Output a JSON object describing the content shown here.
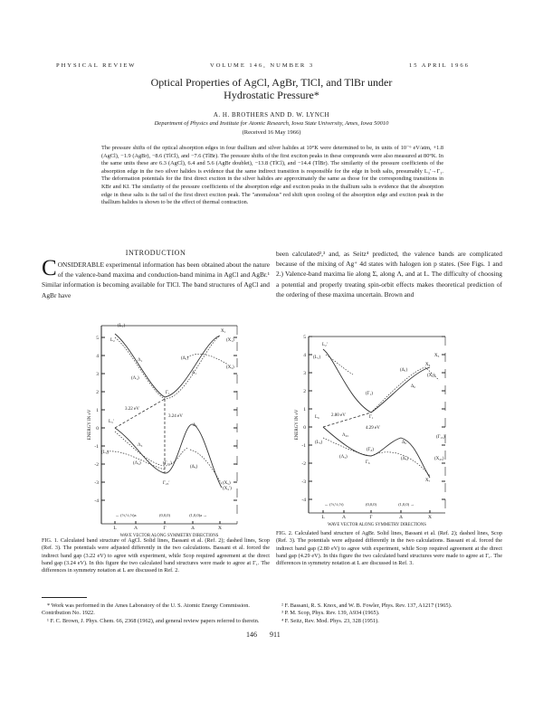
{
  "header": {
    "journal": "PHYSICAL REVIEW",
    "volume": "VOLUME 146, NUMBER 3",
    "date": "15 APRIL 1966"
  },
  "title": {
    "line1": "Optical Properties of AgCl, AgBr, TlCl, and TlBr under",
    "line2": "Hydrostatic Pressure*"
  },
  "authors": "A. H. BROTHERS AND D. W. LYNCH",
  "affiliation": "Department of Physics and Institute for Atomic Research, Iowa State University, Ames, Iowa 50010",
  "received": "(Received 16 May 1966)",
  "abstract": "The pressure shifts of the optical absorption edges in four thallium and silver halides at 10°K were determined to be, in units of 10⁻⁶ eV/atm, +1.8 (AgCl), −1.9 (AgBr), −8.6 (TlCl), and −7.6 (TlBr). The pressure shifts of the first exciton peaks in these compounds were also measured at 80°K. In the same units these are 6.3 (AgCl), 6.4 and 5.6 (AgBr doublet), −13.8 (TlCl), and −14.4 (TlBr). The similarity of the pressure coefficients of the absorption edge in the two silver halides is evidence that the same indirect transition is responsible for the edge in both salts, presumably L₃′→Γ₁. The deformation potentials for the first direct exciton in the silver halides are approximately the same as those for the corresponding transitions in KBr and KI. The similarity of the pressure coefficients of the absorption edge and exciton peaks in the thallium salts is evidence that the absorption edge in these salts is the tail of the first direct exciton peak. The \"anomalous\" red shift upon cooling of the absorption edge and exciton peak in the thallium halides is shown to be the effect of thermal contraction.",
  "introduction": {
    "heading": "INTRODUCTION",
    "dropcap": "C",
    "left_text": "ONSIDERABLE experimental information has been obtained about the nature of the valence-band maxima and conduction-band minima in AgCl and AgBr.¹ Similar information is becoming available for TlCl. The band structures of AgCl and AgBr have",
    "right_text": "been calculated²,³ and, as Seitz⁴ predicted, the valence bands are complicated because of the mixing of Ag⁺ 4d states with halogen ion p states. (See Figs. 1 and 2.) Valence-band maxima lie along Σ, along Λ, and at L. The difficulty of choosing a potential and properly treating spin-orbit effects makes theoretical prediction of the ordering of these maxima uncertain. Brown and"
  },
  "figure1": {
    "caption": "FIG. 1. Calculated band structure of AgCl. Solid lines, Bassani et al. (Ref. 2); dashed lines, Scop (Ref. 3). The potentials were adjusted differently in the two calculations. Bassani et al. forced the indirect band gap (3.22 eV) to agree with experiment, while Scop required agreement at the direct band gap (3.24 eV). In this figure the two calculated band structures were made to agree at Γ₁. The differences in symmetry notation at L are discussed in Ref. 2.",
    "ylabel": "ENERGY IN eV",
    "xlabel": "WAVE VECTOR ALONG SYMMETRY DIRECTIONS",
    "yticks": [
      "5",
      "4",
      "3",
      "2",
      "1",
      "0",
      "-1",
      "-2",
      "-3",
      "-4"
    ],
    "kpoints": [
      "L",
      "Λ",
      "Γ",
      "Δ",
      "X"
    ],
    "direction_labels": [
      "← (½,½,½)a",
      "(0,0,0)",
      "(1,0,0)a →"
    ],
    "annotations": {
      "indirect_gap": "3.22 eV",
      "direct_gap": "3.24 eV",
      "L_top": "(L₁)",
      "L2": "L₂",
      "Lambda1": "Λ₁",
      "Lambda1p": "(Λ₁)",
      "X1": "X₁",
      "X1p": "(X₁)",
      "X3": "(X₃)",
      "Delta1": "Δ₁",
      "Delta1p": "(Δ₁)",
      "Gamma1": "Γ₁",
      "L3p": "L₃′",
      "L3": "(L₃)",
      "Lambda3": "Λ₃",
      "Lambda3p": "(Λ₃)",
      "Gamma15": "(Γ₁₅)",
      "Gamma25": "Γ₂₅′",
      "Delta5": "Δ₅",
      "Delta5p": "(Δ₅)",
      "X5": "(X₅)",
      "X4": "(X₄′)"
    }
  },
  "figure2": {
    "caption": "FIG. 2. Calculated band structure of AgBr. Solid lines, Bassani et al. (Ref. 2); dashed lines, Scop (Ref. 3). The potentials were adjusted differently in the two calculations. Bassani et al. forced the indirect band gap (2.80 eV) to agree with experiment, while Scop required agreement at the direct band gap (4.29 eV). In this figure the two calculated band structures were made to agree at Γ₁. The differences in symmetry notation at L are discussed in Ref. 3.",
    "ylabel": "ENERGY IN eV",
    "xlabel": "WAVE VECTOR ALONG SYMMETRY DIRECTIONS",
    "yticks": [
      "5",
      "4",
      "3",
      "2",
      "1",
      "0",
      "-1",
      "-2",
      "-3",
      "-4"
    ],
    "kpoints": [
      "L",
      "Λ",
      "Γ",
      "Δ",
      "X"
    ],
    "direction_labels": [
      "← (½,½,½)",
      "(0,0,0)",
      "(1,0,0) →"
    ],
    "annotations": {
      "indirect_gap": "2.80 eV",
      "direct_gap": "4.29 eV",
      "L2p": "L₂′",
      "L1": "(L₁)",
      "Gamma1": "(Γ₁)",
      "Gamma1b": "Γ₁",
      "Delta1": "(Δ₁)",
      "Delta6": "Δ₆",
      "X6": "X₆",
      "X6p": "(X₆)",
      "X3": "X₃",
      "L6": "L₆",
      "L3": "(L₃)",
      "Lambda45": "Λ₄₅",
      "Lambda3": "(Λ₃)",
      "Gamma8": "(Γ₈)",
      "Gamma6": "Γ₆",
      "Delta6b": "Δ₆",
      "Delta5": "(Δ₅)",
      "X45": "(X₄₅)",
      "X7": "X₇",
      "Gamma15": "(Γ₁₅)"
    }
  },
  "footnotes": {
    "left": [
      "* Work was performed in the Ames Laboratory of the U. S. Atomic Energy Commission. Contribution No. 1922.",
      "¹ F. C. Brown, J. Phys. Chem. 66, 2368 (1962), and general review papers referred to therein."
    ],
    "right": [
      "² F. Bassani, R. S. Knox, and W. B. Fowler, Phys. Rev. 137, A1217 (1965).",
      "³ P. M. Scop, Phys. Rev. 139, A934 (1965).",
      "⁴ F. Seitz, Rev. Mod. Phys. 23, 328 (1951)."
    ]
  },
  "page_numbers": {
    "left": "146",
    "right": "911"
  }
}
